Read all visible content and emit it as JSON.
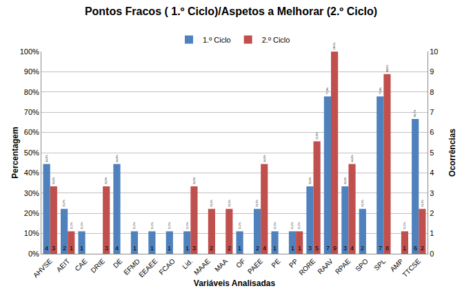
{
  "chart_data": {
    "type": "bar",
    "title": "Pontos Fracos ( 1.º Ciclo)/Aspetos a Melhorar (2.º Ciclo)",
    "x_label": "Variáveis Analisadas",
    "y_label": "Percentagem",
    "y2_label": "Ocorrências",
    "categories": [
      "AHVSE",
      "AEIT",
      "CAE",
      "DRIE",
      "DE",
      "EFMD",
      "EEAEE",
      "FCAO",
      "Lid.",
      "MAAE",
      "MAA",
      "OF",
      "PAEE",
      "PE",
      "PP",
      "RORE",
      "RAAV",
      "RPAE",
      "SPO",
      "SPL",
      "AMP",
      "TTCSE"
    ],
    "series": [
      {
        "name": "1.º Ciclo",
        "color": "#4F81BD",
        "values": [
          44.4,
          22.2,
          11.1,
          null,
          44.4,
          11.1,
          11.1,
          11.1,
          11.1,
          null,
          null,
          11.1,
          22.2,
          11.1,
          11.1,
          33.3,
          77.8,
          33.3,
          22.2,
          77.8,
          null,
          66.7
        ],
        "value_labels": [
          "44,4%",
          "22,2%",
          "11,1%",
          null,
          "44,4%",
          "11,1%",
          "11,1%",
          "11,1%",
          "11,1%",
          null,
          null,
          "11,1%",
          "22,2%",
          "11,1%",
          "11,1%",
          "33,3%",
          "77,8%",
          "33,3%",
          "22,2%",
          "77,8%",
          null,
          "66,7%"
        ],
        "counts": [
          4,
          2,
          1,
          null,
          4,
          1,
          1,
          1,
          1,
          null,
          null,
          1,
          2,
          1,
          1,
          3,
          7,
          3,
          2,
          7,
          null,
          6
        ]
      },
      {
        "name": "2.º Ciclo",
        "color": "#C0504D",
        "values": [
          33.3,
          11.1,
          null,
          33.3,
          null,
          null,
          null,
          null,
          33.3,
          22.2,
          22.2,
          null,
          44.4,
          null,
          11.1,
          55.6,
          100,
          44.4,
          null,
          88.9,
          11.1,
          22.2
        ],
        "value_labels": [
          "33,3%",
          "11,1%",
          null,
          "33,3%",
          null,
          null,
          null,
          null,
          "33,3%",
          "22,2%",
          "22,2%",
          null,
          "44,4%",
          null,
          "11,1%",
          "55,6%",
          "100,0%",
          "44,4%",
          null,
          "88,9%",
          "11,1%",
          "22,2%"
        ],
        "counts": [
          3,
          1,
          null,
          3,
          null,
          null,
          null,
          null,
          3,
          2,
          2,
          null,
          4,
          null,
          1,
          5,
          9,
          4,
          null,
          8,
          1,
          2
        ]
      }
    ],
    "ylim": [
      0,
      100
    ],
    "yticks": [
      {
        "value": 0,
        "label": "0%"
      },
      {
        "value": 10,
        "label": "10%"
      },
      {
        "value": 20,
        "label": "20%"
      },
      {
        "value": 30,
        "label": "30%"
      },
      {
        "value": 40,
        "label": "40%"
      },
      {
        "value": 50,
        "label": "50%"
      },
      {
        "value": 60,
        "label": "60%"
      },
      {
        "value": 70,
        "label": "70%"
      },
      {
        "value": 80,
        "label": "80%"
      },
      {
        "value": 90,
        "label": "90%"
      },
      {
        "value": 100,
        "label": "100%"
      }
    ],
    "y2lim": [
      0,
      10
    ],
    "y2ticks": [
      0,
      1,
      2,
      3,
      4,
      5,
      6,
      7,
      8,
      9,
      10
    ],
    "grid": true,
    "legend": "top",
    "data_labels": true
  }
}
